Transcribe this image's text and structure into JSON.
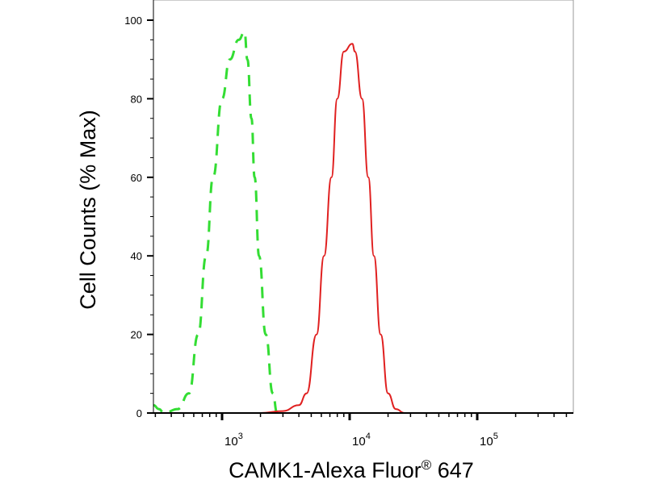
{
  "chart_data": {
    "type": "line",
    "title": "",
    "xlabel": "CAMK1-Alexa Fluor® 647",
    "xlabel_main": "CAMK1-Alexa Fluor",
    "xlabel_reg": "®",
    "xlabel_tail": " 647",
    "ylabel": "Cell Counts (% Max)",
    "x_scale": "log",
    "xlim": [
      290,
      560000
    ],
    "ylim": [
      0,
      100
    ],
    "x_ticks": [
      {
        "base": "10",
        "exp": "3",
        "value": 1000
      },
      {
        "base": "10",
        "exp": "4",
        "value": 10000
      },
      {
        "base": "10",
        "exp": "5",
        "value": 100000
      }
    ],
    "y_ticks": [
      "0",
      "20",
      "40",
      "60",
      "80",
      "100"
    ],
    "grid": false,
    "series": [
      {
        "style": "dashed",
        "color": "#33dd33",
        "x": [
          290,
          320,
          350,
          450,
          550,
          650,
          750,
          850,
          1000,
          1150,
          1350,
          1500,
          1580,
          1700,
          1800,
          1950,
          2200,
          2500,
          2700
        ],
        "y": [
          2,
          1,
          0,
          1,
          5,
          20,
          40,
          60,
          80,
          90,
          95,
          97,
          90,
          75,
          60,
          40,
          20,
          5,
          0
        ]
      },
      {
        "style": "solid",
        "color": "#e02020",
        "x": [
          290,
          2000,
          3000,
          4000,
          4600,
          5500,
          6300,
          7200,
          8000,
          9000,
          10500,
          11000,
          12500,
          14000,
          15500,
          17500,
          20000,
          23000,
          27000,
          560000
        ],
        "y": [
          0,
          0,
          0.5,
          2,
          5,
          20,
          40,
          60,
          80,
          92,
          94,
          92,
          80,
          60,
          40,
          20,
          5,
          1,
          0,
          0
        ]
      }
    ]
  }
}
